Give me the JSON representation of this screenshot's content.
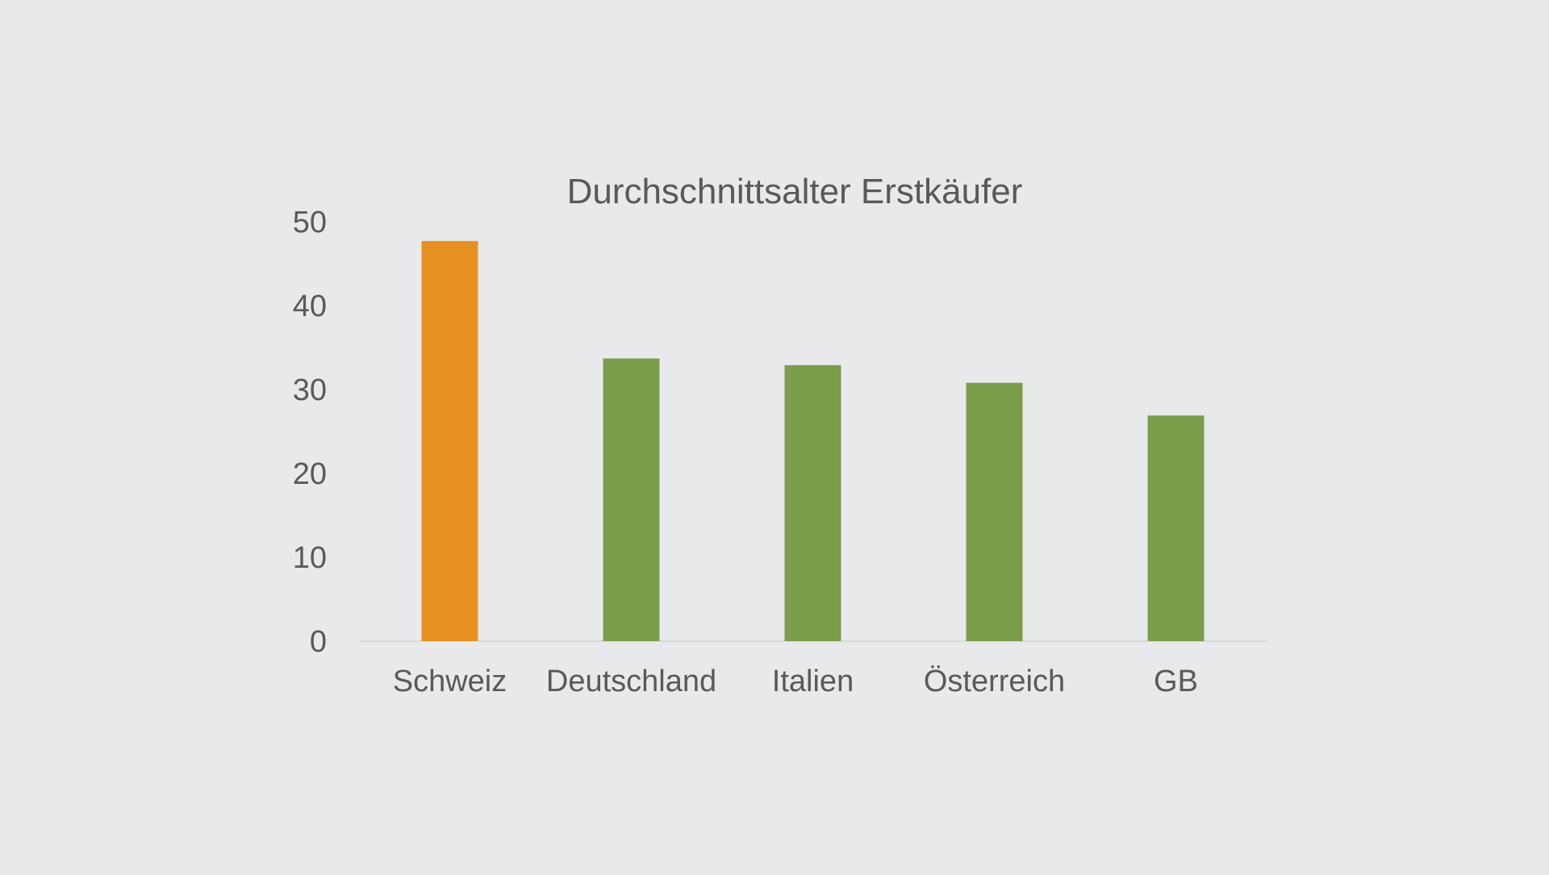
{
  "chart_data": {
    "type": "bar",
    "title": "Durchschnittsalter Erstkäufer",
    "xlabel": "",
    "ylabel": "",
    "categories": [
      "Schweiz",
      "Deutschland",
      "Italien",
      "Österreich",
      "GB"
    ],
    "values": [
      47.7,
      33.7,
      32.9,
      30.8,
      26.9
    ],
    "colors": [
      "#e69022",
      "#7a9d4b",
      "#7a9d4b",
      "#7a9d4b",
      "#7a9d4b"
    ],
    "ylim": [
      0,
      50
    ],
    "yticks": [
      0,
      10,
      20,
      30,
      40,
      50
    ],
    "ytick_labels": [
      "0",
      "10",
      "20",
      "30",
      "40",
      "50"
    ],
    "grid": false,
    "legend": "none"
  }
}
